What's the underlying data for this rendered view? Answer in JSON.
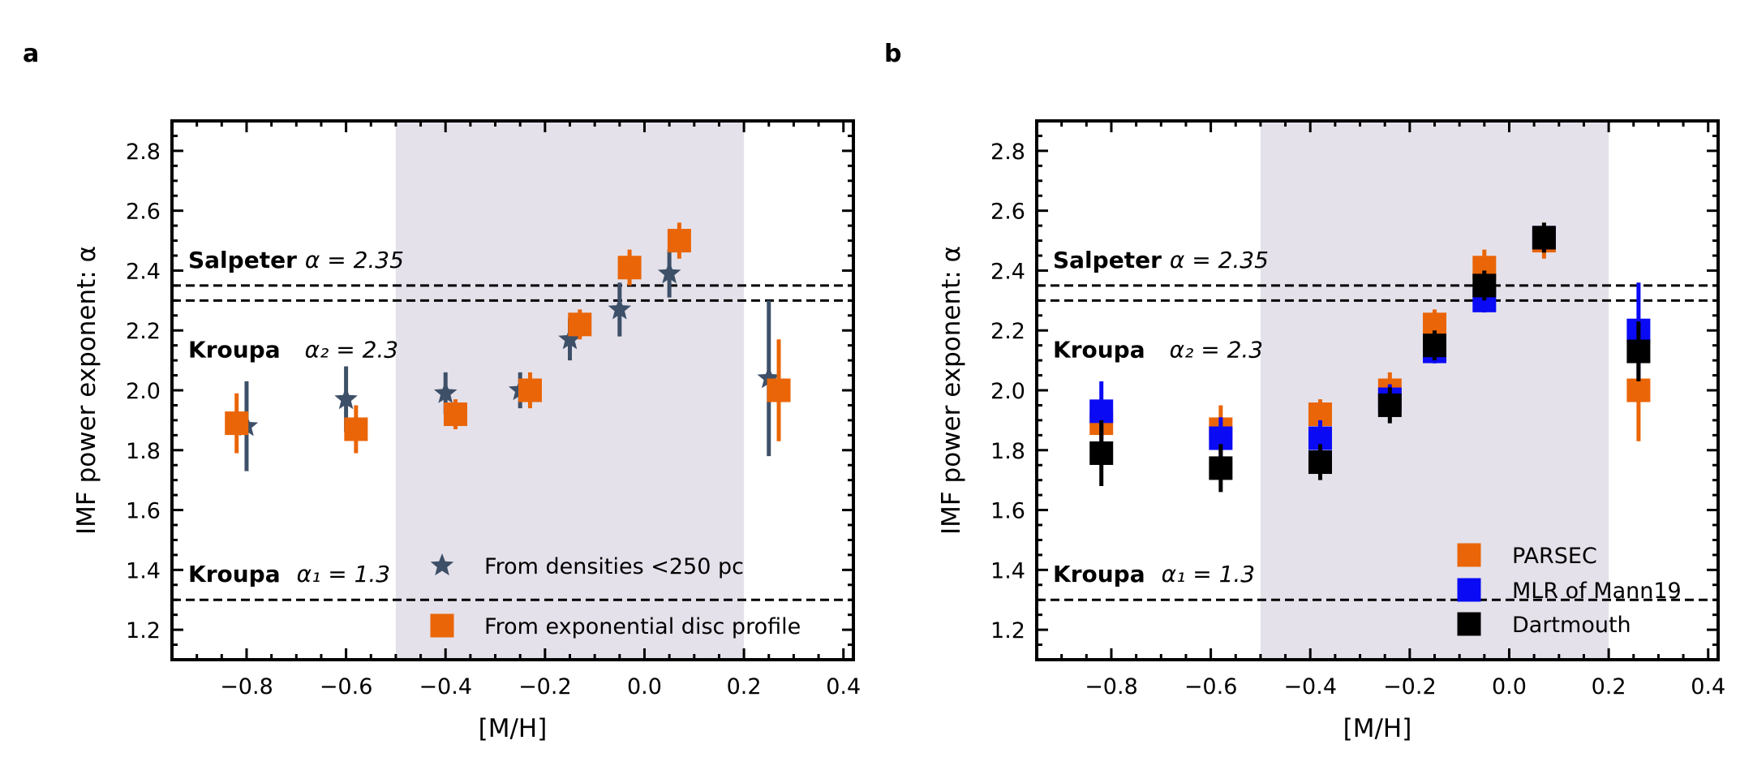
{
  "chart_data": [
    {
      "type": "scatter",
      "panel_label": "a",
      "xlabel": "[M/H]",
      "ylabel": "IMF power exponent: α",
      "xlim": [
        -0.95,
        0.42
      ],
      "ylim": [
        1.1,
        2.9
      ],
      "xticks": [
        -0.8,
        -0.6,
        -0.4,
        -0.2,
        0.0,
        0.2,
        0.4
      ],
      "xtick_labels": [
        "−0.8",
        "−0.6",
        "−0.4",
        "−0.2",
        "0.0",
        "0.2",
        "0.4"
      ],
      "yticks": [
        1.2,
        1.4,
        1.6,
        1.8,
        2.0,
        2.2,
        2.4,
        2.6,
        2.8
      ],
      "ytick_labels": [
        "1.2",
        "1.4",
        "1.6",
        "1.8",
        "2.0",
        "2.2",
        "2.4",
        "2.6",
        "2.8"
      ],
      "shaded_region": [
        -0.5,
        0.2
      ],
      "reference_lines": [
        {
          "y": 2.35,
          "name": "Salpeter",
          "formula": "α = 2.35",
          "label_y": 2.41
        },
        {
          "y": 2.3,
          "name": "Kroupa",
          "formula": "α₂ = 2.3",
          "label_y": 2.11
        },
        {
          "y": 1.3,
          "name": "Kroupa",
          "formula": "α₁ = 1.3",
          "label_y": 1.36
        }
      ],
      "series": [
        {
          "name": "From densities <250 pc",
          "marker": "star",
          "color": "#3e5068",
          "x": [
            -0.8,
            -0.6,
            -0.4,
            -0.25,
            -0.15,
            -0.05,
            0.05,
            0.25
          ],
          "y": [
            1.88,
            1.97,
            1.99,
            2.0,
            2.17,
            2.27,
            2.39,
            2.04
          ],
          "y_err": [
            0.15,
            0.11,
            0.07,
            0.06,
            0.07,
            0.09,
            0.08,
            0.26
          ]
        },
        {
          "name": "From exponential disc profile",
          "marker": "square",
          "color": "#ea6507",
          "x": [
            -0.82,
            -0.58,
            -0.38,
            -0.23,
            -0.13,
            -0.03,
            0.07,
            0.27
          ],
          "y": [
            1.89,
            1.87,
            1.92,
            2.0,
            2.22,
            2.41,
            2.5,
            2.0
          ],
          "y_err": [
            0.1,
            0.08,
            0.05,
            0.06,
            0.05,
            0.06,
            0.06,
            0.17
          ]
        }
      ],
      "legend_location": "lower-right"
    },
    {
      "type": "scatter",
      "panel_label": "b",
      "xlabel": "[M/H]",
      "ylabel": "IMF power exponent: α",
      "xlim": [
        -0.95,
        0.42
      ],
      "ylim": [
        1.1,
        2.9
      ],
      "xticks": [
        -0.8,
        -0.6,
        -0.4,
        -0.2,
        0.0,
        0.2,
        0.4
      ],
      "xtick_labels": [
        "−0.8",
        "−0.6",
        "−0.4",
        "−0.2",
        "0.0",
        "0.2",
        "0.4"
      ],
      "yticks": [
        1.2,
        1.4,
        1.6,
        1.8,
        2.0,
        2.2,
        2.4,
        2.6,
        2.8
      ],
      "ytick_labels": [
        "1.2",
        "1.4",
        "1.6",
        "1.8",
        "2.0",
        "2.2",
        "2.4",
        "2.6",
        "2.8"
      ],
      "shaded_region": [
        -0.5,
        0.2
      ],
      "reference_lines": [
        {
          "y": 2.35,
          "name": "Salpeter",
          "formula": "α = 2.35",
          "label_y": 2.41
        },
        {
          "y": 2.3,
          "name": "Kroupa",
          "formula": "α₂ = 2.3",
          "label_y": 2.11
        },
        {
          "y": 1.3,
          "name": "Kroupa",
          "formula": "α₁ = 1.3",
          "label_y": 1.36
        }
      ],
      "series": [
        {
          "name": "PARSEC",
          "marker": "square",
          "color": "#ea6507",
          "x": [
            -0.82,
            -0.58,
            -0.38,
            -0.24,
            -0.15,
            -0.05,
            0.07,
            0.26
          ],
          "y": [
            1.89,
            1.87,
            1.92,
            2.0,
            2.22,
            2.41,
            2.5,
            2.0
          ],
          "y_err": [
            0.05,
            0.08,
            0.05,
            0.06,
            0.05,
            0.06,
            0.06,
            0.17
          ]
        },
        {
          "name": "MLR of Mann19",
          "marker": "square",
          "color": "#0a0af5",
          "x": [
            -0.82,
            -0.58,
            -0.38,
            -0.24,
            -0.15,
            -0.05,
            0.07,
            0.26
          ],
          "y": [
            1.93,
            1.84,
            1.84,
            1.97,
            2.13,
            2.3,
            2.51,
            2.2
          ],
          "y_err": [
            0.1,
            0.07,
            0.06,
            0.05,
            0.04,
            0.04,
            0.04,
            0.16
          ]
        },
        {
          "name": "Dartmouth",
          "marker": "square",
          "color": "#000000",
          "x": [
            -0.82,
            -0.58,
            -0.38,
            -0.24,
            -0.15,
            -0.05,
            0.07,
            0.26
          ],
          "y": [
            1.79,
            1.74,
            1.76,
            1.95,
            2.15,
            2.35,
            2.51,
            2.13
          ],
          "y_err": [
            0.11,
            0.08,
            0.06,
            0.06,
            0.05,
            0.05,
            0.05,
            0.1
          ]
        }
      ],
      "legend_location": "lower-right"
    }
  ]
}
